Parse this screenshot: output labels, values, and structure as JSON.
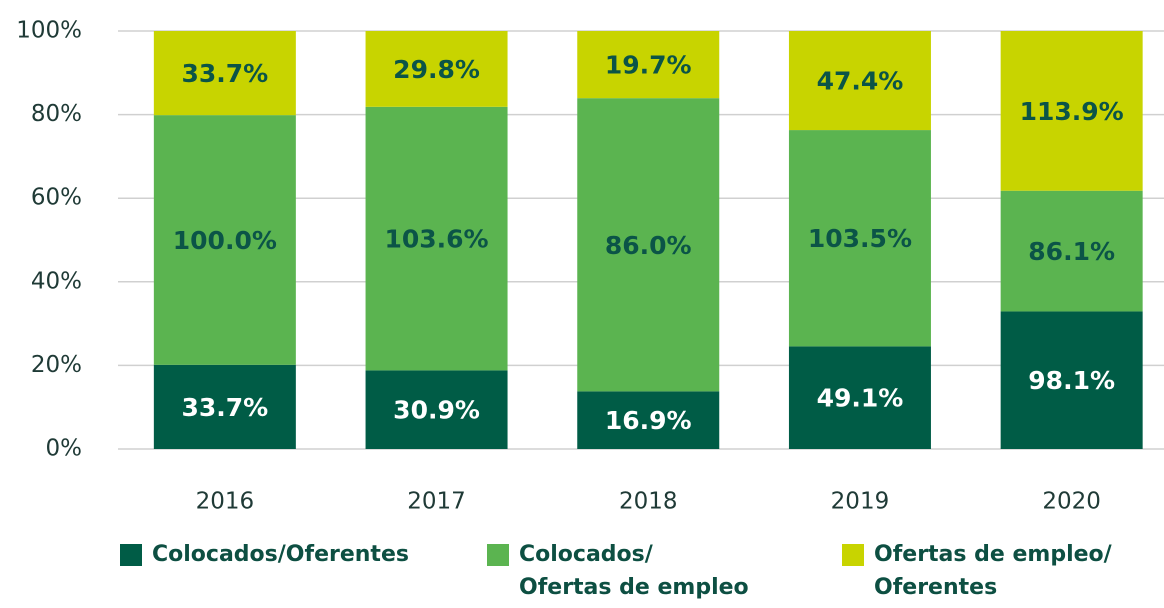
{
  "chart_data": {
    "type": "bar",
    "stacked": "percent",
    "categories": [
      "2016",
      "2017",
      "2018",
      "2019",
      "2020"
    ],
    "series": [
      {
        "name": "Colocados/Oferentes",
        "color": "#005c46",
        "values": [
          33.7,
          30.9,
          16.9,
          49.1,
          98.1
        ],
        "value_labels": [
          "33.7%",
          "30.9%",
          "16.9%",
          "49.1%",
          "98.1%"
        ]
      },
      {
        "name": "Colocados/\nOfertas de empleo",
        "color": "#5bb450",
        "values": [
          100.0,
          103.6,
          86.0,
          103.5,
          86.1
        ],
        "value_labels": [
          "100.0%",
          "103.6%",
          "86.0%",
          "103.5%",
          "86.1%"
        ]
      },
      {
        "name": "Ofertas de empleo/\nOferentes",
        "color": "#c8d400",
        "values": [
          33.7,
          29.8,
          19.7,
          47.4,
          113.9
        ],
        "value_labels": [
          "33.7%",
          "29.8%",
          "19.7%",
          "47.4%",
          "113.9%"
        ]
      }
    ],
    "ylim": [
      0,
      100
    ],
    "yticks": [
      {
        "value": 0,
        "label": "0%"
      },
      {
        "value": 20,
        "label": "20%"
      },
      {
        "value": 40,
        "label": "40%"
      },
      {
        "value": 60,
        "label": "60%"
      },
      {
        "value": 80,
        "label": "80%"
      },
      {
        "value": 100,
        "label": "100%"
      }
    ],
    "grid": true
  }
}
